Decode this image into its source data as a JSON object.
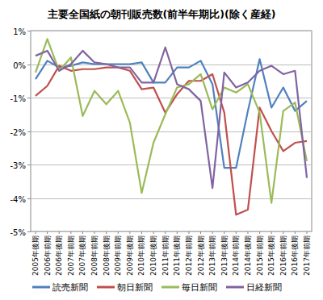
{
  "chart_data": {
    "type": "line",
    "title": "主要全国紙の朝刊販売数(前半年期比)(除く産経)",
    "categories": [
      "2005年後期",
      "2006年前期",
      "2006年後期",
      "2007年前期",
      "2007年後期",
      "2008年前期",
      "2008年後期",
      "2009年前期",
      "2009年後期",
      "2010年前期",
      "2010年後期",
      "2011年前期",
      "2011年後期",
      "2012年前期",
      "2012年後期",
      "2013年前期",
      "2013年後期",
      "2014年前期",
      "2014年後期",
      "2015年前期",
      "2015年後期",
      "2016年前期",
      "2016年後期",
      "2017年前期"
    ],
    "series": [
      {
        "name": "読売新聞",
        "color": "#4f81bd",
        "values": [
          -0.45,
          0.1,
          -0.1,
          -0.05,
          0.05,
          0.0,
          0.0,
          0.0,
          0.0,
          0.05,
          -0.55,
          -0.55,
          -0.1,
          -0.1,
          0.1,
          -0.6,
          -3.1,
          -3.1,
          -1.4,
          0.15,
          -1.3,
          -0.7,
          -1.4,
          -1.1
        ]
      },
      {
        "name": "朝日新聞",
        "color": "#c0504d",
        "values": [
          -0.95,
          -0.65,
          -0.05,
          -0.2,
          -0.15,
          -0.15,
          -0.1,
          -0.1,
          -0.2,
          -0.75,
          -0.7,
          -1.45,
          -0.9,
          -0.5,
          -0.5,
          -0.3,
          -1.45,
          -4.5,
          -4.35,
          -1.3,
          -2.0,
          -2.6,
          -2.35,
          -2.3
        ]
      },
      {
        "name": "毎日新聞",
        "color": "#9bbb59",
        "values": [
          -0.25,
          0.75,
          -0.2,
          0.2,
          -1.55,
          -0.8,
          -1.2,
          -0.8,
          -1.75,
          -3.85,
          -2.35,
          -1.5,
          -0.7,
          -0.6,
          -0.3,
          -1.35,
          -0.7,
          -0.85,
          -0.6,
          -1.45,
          -4.15,
          -1.4,
          -1.15,
          -2.9
        ]
      },
      {
        "name": "日経新聞",
        "color": "#8064a2",
        "values": [
          0.25,
          0.4,
          -0.2,
          0.0,
          0.4,
          0.05,
          0.0,
          -0.1,
          -0.1,
          -0.55,
          -0.55,
          0.5,
          -0.6,
          -0.75,
          -1.1,
          -3.7,
          -0.25,
          -0.7,
          -0.55,
          -0.2,
          -0.05,
          -0.3,
          -0.2,
          -3.4
        ]
      }
    ],
    "ylim": [
      -5,
      1
    ],
    "yticks": [
      {
        "value": 1,
        "label": "1%"
      },
      {
        "value": 0,
        "label": "0%"
      },
      {
        "value": -1,
        "label": "-1%"
      },
      {
        "value": -2,
        "label": "-2%"
      },
      {
        "value": -3,
        "label": "-3%"
      },
      {
        "value": -4,
        "label": "-4%"
      },
      {
        "value": -5,
        "label": "-5%"
      }
    ],
    "grid": true,
    "legend": "bottom"
  }
}
